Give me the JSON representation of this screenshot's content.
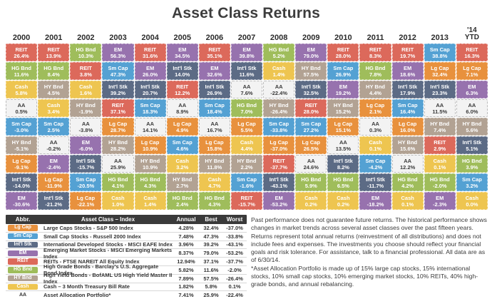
{
  "title": "Asset Class Returns",
  "colors": {
    "Lg Cap": "#e8913d",
    "Sm Cap": "#54a1d3",
    "Int'l Stk": "#5c6b85",
    "EM": "#9772ae",
    "REIT": "#dc695b",
    "HG Bnd": "#9fbd5b",
    "HY Bnd": "#b2a293",
    "Cash": "#eec550",
    "AA": "#f3f3f3"
  },
  "chart_data": {
    "type": "heatmap",
    "title": "Asset Class Returns",
    "note": "Each column ranks asset class total returns (%) from best to worst for that year",
    "columns": [
      {
        "year_lines": [
          "2000"
        ],
        "cells": [
          {
            "asset": "REIT",
            "value": 26.4
          },
          {
            "asset": "HG Bnd",
            "value": 11.6
          },
          {
            "asset": "Cash",
            "value": 5.8
          },
          {
            "asset": "AA",
            "value": 0.5
          },
          {
            "asset": "Sm Cap",
            "value": -3.0
          },
          {
            "asset": "HY Bnd",
            "value": -5.1
          },
          {
            "asset": "Lg Cap",
            "value": -9.1
          },
          {
            "asset": "Int'l Stk",
            "value": -14.0
          },
          {
            "asset": "EM",
            "value": -30.6
          }
        ]
      },
      {
        "year_lines": [
          "2001"
        ],
        "cells": [
          {
            "asset": "REIT",
            "value": 13.9
          },
          {
            "asset": "HG Bnd",
            "value": 8.4
          },
          {
            "asset": "HY Bnd",
            "value": 4.5
          },
          {
            "asset": "Cash",
            "value": 3.4
          },
          {
            "asset": "Sm Cap",
            "value": 2.5
          },
          {
            "asset": "AA",
            "value": -0.2
          },
          {
            "asset": "EM",
            "value": -2.4
          },
          {
            "asset": "Lg Cap",
            "value": -11.9
          },
          {
            "asset": "Int'l Stk",
            "value": -21.2
          }
        ]
      },
      {
        "year_lines": [
          "2002"
        ],
        "cells": [
          {
            "asset": "HG Bnd",
            "value": 10.3
          },
          {
            "asset": "REIT",
            "value": 3.8
          },
          {
            "asset": "Cash",
            "value": 1.6
          },
          {
            "asset": "HY Bnd",
            "value": -1.9
          },
          {
            "asset": "AA",
            "value": -3.8
          },
          {
            "asset": "EM",
            "value": -6.0
          },
          {
            "asset": "Int'l Stk",
            "value": -15.7
          },
          {
            "asset": "Sm Cap",
            "value": -20.5
          },
          {
            "asset": "Lg Cap",
            "value": -22.1
          }
        ]
      },
      {
        "year_lines": [
          "2003"
        ],
        "cells": [
          {
            "asset": "EM",
            "value": 56.3
          },
          {
            "asset": "Sm Cap",
            "value": 47.3
          },
          {
            "asset": "Int'l Stk",
            "value": 39.2
          },
          {
            "asset": "REIT",
            "value": 37.1
          },
          {
            "asset": "Lg Cap",
            "value": 28.7
          },
          {
            "asset": "HY Bnd",
            "value": 28.2
          },
          {
            "asset": "AA",
            "value": 25.9
          },
          {
            "asset": "HG Bnd",
            "value": 4.1
          },
          {
            "asset": "Cash",
            "value": 1.0
          }
        ]
      },
      {
        "year_lines": [
          "2004"
        ],
        "cells": [
          {
            "asset": "REIT",
            "value": 31.6
          },
          {
            "asset": "EM",
            "value": 26.0
          },
          {
            "asset": "Int'l Stk",
            "value": 20.7
          },
          {
            "asset": "Sm Cap",
            "value": 18.3
          },
          {
            "asset": "AA",
            "value": 14.1
          },
          {
            "asset": "Lg Cap",
            "value": 10.9
          },
          {
            "asset": "HY Bnd",
            "value": 10.9
          },
          {
            "asset": "HG Bnd",
            "value": 4.3
          },
          {
            "asset": "Cash",
            "value": 1.4
          }
        ]
      },
      {
        "year_lines": [
          "2005"
        ],
        "cells": [
          {
            "asset": "EM",
            "value": 34.5
          },
          {
            "asset": "Int'l Stk",
            "value": 14.0
          },
          {
            "asset": "REIT",
            "value": 12.2
          },
          {
            "asset": "AA",
            "value": 8.9
          },
          {
            "asset": "Lg Cap",
            "value": 4.9
          },
          {
            "asset": "Sm Cap",
            "value": 4.6
          },
          {
            "asset": "Cash",
            "value": 3.2
          },
          {
            "asset": "HY Bnd",
            "value": 2.7
          },
          {
            "asset": "HG Bnd",
            "value": 2.4
          }
        ]
      },
      {
        "year_lines": [
          "2006"
        ],
        "cells": [
          {
            "asset": "REIT",
            "value": 35.1
          },
          {
            "asset": "EM",
            "value": 32.6
          },
          {
            "asset": "Int'l Stk",
            "value": 26.9
          },
          {
            "asset": "Sm Cap",
            "value": 18.4
          },
          {
            "asset": "AA",
            "value": 16.7
          },
          {
            "asset": "Lg Cap",
            "value": 15.8
          },
          {
            "asset": "HY Bnd",
            "value": 11.8
          },
          {
            "asset": "Cash",
            "value": 4.7
          },
          {
            "asset": "HG Bnd",
            "value": 4.3
          }
        ]
      },
      {
        "year_lines": [
          "2007"
        ],
        "cells": [
          {
            "asset": "EM",
            "value": 39.8
          },
          {
            "asset": "Int'l Stk",
            "value": 11.6
          },
          {
            "asset": "AA",
            "value": 7.6
          },
          {
            "asset": "HG Bnd",
            "value": 7.0
          },
          {
            "asset": "Lg Cap",
            "value": 5.5
          },
          {
            "asset": "Cash",
            "value": 4.4
          },
          {
            "asset": "HY Bnd",
            "value": 2.2
          },
          {
            "asset": "Sm Cap",
            "value": -1.6
          },
          {
            "asset": "REIT",
            "value": -15.7
          }
        ]
      },
      {
        "year_lines": [
          "2008"
        ],
        "cells": [
          {
            "asset": "HG Bnd",
            "value": 5.2
          },
          {
            "asset": "Cash",
            "value": 1.4
          },
          {
            "asset": "AA",
            "value": -22.4
          },
          {
            "asset": "HY Bnd",
            "value": -26.4
          },
          {
            "asset": "Sm Cap",
            "value": -33.8
          },
          {
            "asset": "Lg Cap",
            "value": -37.0
          },
          {
            "asset": "REIT",
            "value": -37.7
          },
          {
            "asset": "Int'l Stk",
            "value": -43.1
          },
          {
            "asset": "EM",
            "value": -53.2
          }
        ]
      },
      {
        "year_lines": [
          "2009"
        ],
        "cells": [
          {
            "asset": "EM",
            "value": 79.0
          },
          {
            "asset": "HY Bnd",
            "value": 57.5
          },
          {
            "asset": "Int'l Stk",
            "value": 32.5
          },
          {
            "asset": "REIT",
            "value": 28.0
          },
          {
            "asset": "Sm Cap",
            "value": 27.2
          },
          {
            "asset": "Lg Cap",
            "value": 26.5
          },
          {
            "asset": "AA",
            "value": 24.6
          },
          {
            "asset": "HG Bnd",
            "value": 5.9
          },
          {
            "asset": "Cash",
            "value": 0.2
          }
        ]
      },
      {
        "year_lines": [
          "2010"
        ],
        "cells": [
          {
            "asset": "REIT",
            "value": 28.0
          },
          {
            "asset": "Sm Cap",
            "value": 26.9
          },
          {
            "asset": "EM",
            "value": 19.2
          },
          {
            "asset": "HY Bnd",
            "value": 15.2
          },
          {
            "asset": "Lg Cap",
            "value": 15.1
          },
          {
            "asset": "AA",
            "value": 13.5
          },
          {
            "asset": "Int'l Stk",
            "value": 8.2
          },
          {
            "asset": "HG Bnd",
            "value": 6.5
          },
          {
            "asset": "Cash",
            "value": 0.2
          }
        ]
      },
      {
        "year_lines": [
          "2011"
        ],
        "cells": [
          {
            "asset": "REIT",
            "value": 8.3
          },
          {
            "asset": "HG Bnd",
            "value": 7.8
          },
          {
            "asset": "HY Bnd",
            "value": 4.4
          },
          {
            "asset": "Lg Cap",
            "value": 2.1
          },
          {
            "asset": "AA",
            "value": 0.3
          },
          {
            "asset": "Cash",
            "value": 0.1
          },
          {
            "asset": "Sm Cap",
            "value": -4.2
          },
          {
            "asset": "Int'l Stk",
            "value": -11.7
          },
          {
            "asset": "EM",
            "value": -18.2
          }
        ]
      },
      {
        "year_lines": [
          "2012"
        ],
        "cells": [
          {
            "asset": "REIT",
            "value": 19.7
          },
          {
            "asset": "EM",
            "value": 18.6
          },
          {
            "asset": "Int'l Stk",
            "value": 17.9
          },
          {
            "asset": "Sm Cap",
            "value": 16.4
          },
          {
            "asset": "Lg Cap",
            "value": 16.0
          },
          {
            "asset": "HY Bnd",
            "value": 15.6
          },
          {
            "asset": "AA",
            "value": 12.2
          },
          {
            "asset": "HG Bnd",
            "value": 4.2
          },
          {
            "asset": "Cash",
            "value": 0.1
          }
        ]
      },
      {
        "year_lines": [
          "2013"
        ],
        "cells": [
          {
            "asset": "Sm Cap",
            "value": 38.8
          },
          {
            "asset": "Lg Cap",
            "value": 32.4
          },
          {
            "asset": "Int'l Stk",
            "value": 23.3
          },
          {
            "asset": "AA",
            "value": 11.5
          },
          {
            "asset": "HY Bnd",
            "value": 7.4
          },
          {
            "asset": "REIT",
            "value": 2.9
          },
          {
            "asset": "Cash",
            "value": 0.1
          },
          {
            "asset": "HG Bnd",
            "value": -2.0
          },
          {
            "asset": "EM",
            "value": -2.3
          }
        ]
      },
      {
        "year_lines": [
          "'14",
          "YTD"
        ],
        "cells": [
          {
            "asset": "REIT",
            "value": 16.3
          },
          {
            "asset": "Lg Cap",
            "value": 7.1
          },
          {
            "asset": "EM",
            "value": 6.3
          },
          {
            "asset": "AA",
            "value": 6.0
          },
          {
            "asset": "HY Bnd",
            "value": 5.6
          },
          {
            "asset": "Int'l Stk",
            "value": 5.1
          },
          {
            "asset": "HG Bnd",
            "value": 3.9
          },
          {
            "asset": "Sm Cap",
            "value": 3.2
          },
          {
            "asset": "Cash",
            "value": 0.0
          }
        ]
      }
    ]
  },
  "legend": {
    "headers": {
      "abbr": "Abbr.",
      "name": "Asset Class – Index",
      "annual": "Annual",
      "best": "Best",
      "worst": "Worst"
    },
    "rows": [
      {
        "abbr": "Lg Cap",
        "name": "Large Caps Stocks - S&P 500 Index",
        "annual": "4.28%",
        "best": "32.4%",
        "worst": "-37.0%"
      },
      {
        "abbr": "Sm Cap",
        "name": "Small Cap Stocks - Russell 2000 Index",
        "annual": "7.48%",
        "best": "47.3%",
        "worst": "-33.8%"
      },
      {
        "abbr": "Int'l Stk",
        "name": "International Developed Stocks - MSCI EAFE Index",
        "annual": "3.96%",
        "best": "39.2%",
        "worst": "-43.1%"
      },
      {
        "abbr": "EM",
        "name": "Emerging Market Stocks - MSCI Emerging Markets Index",
        "annual": "8.37%",
        "best": "79.0%",
        "worst": "-53.2%"
      },
      {
        "abbr": "REIT",
        "name": "REITs - FTSE NAREIT All Equity Index",
        "annual": "12.94%",
        "best": "37.1%",
        "worst": "-37.7%"
      },
      {
        "abbr": "HG Bnd",
        "name": "High Grade Bonds - Barclay's U.S. Aggregate Bond Index",
        "annual": "5.82%",
        "best": "11.6%",
        "worst": "-2.0%"
      },
      {
        "abbr": "HY Bnd",
        "name": "High Yield Bonds - BofAML US High Yield Master II Index",
        "annual": "7.89%",
        "best": "57.5%",
        "worst": "-26.4%"
      },
      {
        "abbr": "Cash",
        "name": "Cash – 3 Month Treasury Bill Rate",
        "annual": "1.82%",
        "best": "5.8%",
        "worst": "0.1%"
      },
      {
        "abbr": "AA",
        "name": "Asset Allocation Portfolio*",
        "annual": "7.41%",
        "best": "25.9%",
        "worst": "-22.4%"
      }
    ]
  },
  "notes": {
    "p1": "Past performance does not guarantee future returns. The historical performance shows changes in market trends across several asset classes over the past fifteen years. Returns represent total annual returns (reinvestment of all distributions) and does not include fees and expenses. The investments you choose should reflect your financial goals and risk tolerance. For assistance, talk to a financial professional. All data are as of 6/30/14.",
    "p2": "*Asset Allocation Portfolio is made up of 15% large cap stocks, 15% international stocks, 10% small cap stocks, 10% emerging market stocks, 10% REITs, 40% high-grade bonds, and annual rebalancing."
  }
}
